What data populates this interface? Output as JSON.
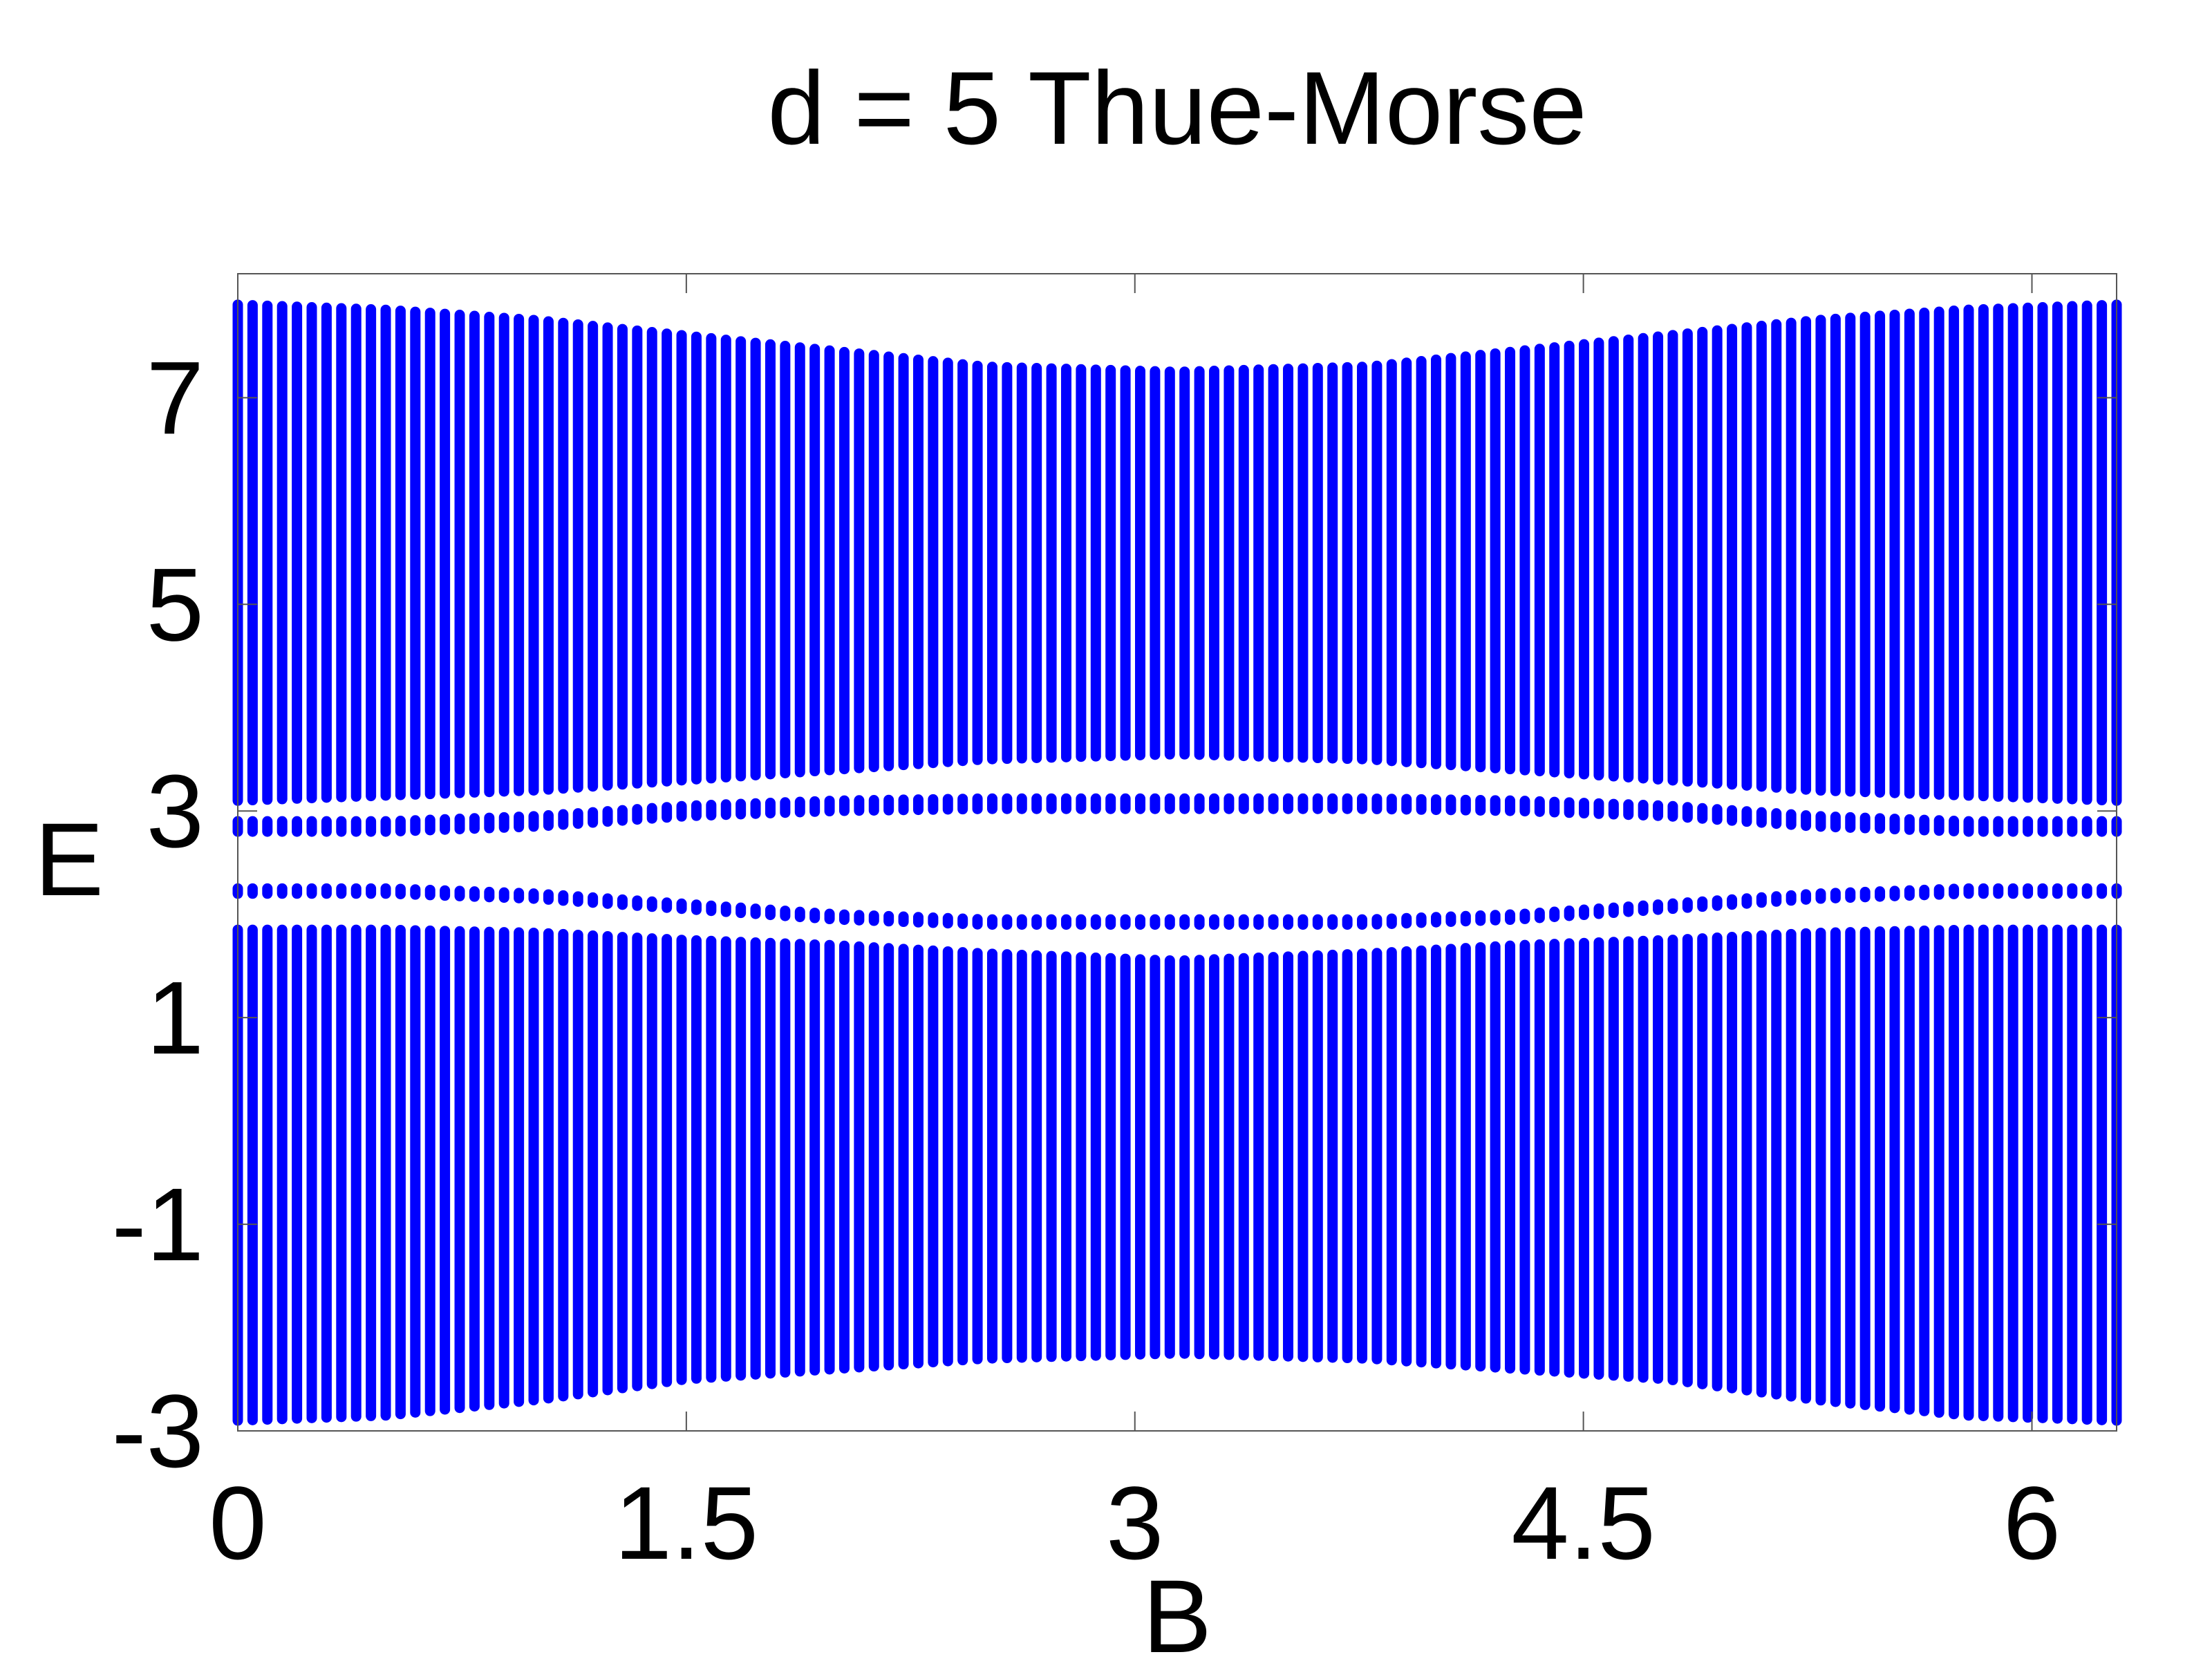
{
  "chart_data": {
    "type": "scatter",
    "title": "d = 5 Thue-Morse",
    "xlabel": "B",
    "ylabel": "E",
    "xlim": [
      0,
      6.2832
    ],
    "ylim": [
      -3,
      8.2
    ],
    "xticks": [
      0,
      1.5,
      3,
      4.5,
      6
    ],
    "xtick_labels": [
      "0",
      "1.5",
      "3",
      "4.5",
      "6"
    ],
    "yticks": [
      -3,
      -1,
      1,
      3,
      5,
      7
    ],
    "ytick_labels": [
      "-3",
      "-1",
      "1",
      "3",
      "5",
      "7"
    ],
    "grid": false,
    "box": true,
    "marker_color": "#0000ff",
    "sample_count": 128,
    "series": [
      {
        "values_description": "",
        "bands": [
          {
            "B": [
              0,
              0.5,
              1.0,
              1.5,
              2.0,
              2.5,
              3.1416,
              3.78,
              4.28,
              4.78,
              5.28,
              5.78,
              6.2832
            ],
            "E_min": [
              -2.9,
              -2.85,
              -2.7,
              -2.5,
              -2.4,
              -2.3,
              -2.25,
              -2.3,
              -2.4,
              -2.5,
              -2.7,
              -2.85,
              -2.9
            ],
            "E_max": [
              1.85,
              1.85,
              1.82,
              1.75,
              1.7,
              1.62,
              1.55,
              1.62,
              1.7,
              1.75,
              1.82,
              1.85,
              1.85
            ]
          },
          {
            "B": [
              0,
              0.5,
              1.0,
              1.5,
              2.0,
              2.5,
              3.1416,
              3.78,
              4.28,
              4.78,
              5.28,
              5.78,
              6.2832
            ],
            "E_min": [
              2.2,
              2.2,
              2.15,
              2.05,
              1.95,
              1.9,
              1.9,
              1.9,
              1.95,
              2.05,
              2.15,
              2.2,
              2.2
            ],
            "E_max": [
              2.25,
              2.25,
              2.2,
              2.1,
              2.0,
              1.95,
              1.95,
              1.95,
              2.0,
              2.1,
              2.2,
              2.25,
              2.25
            ]
          },
          {
            "B": [
              0,
              0.5,
              1.0,
              1.5,
              2.0,
              2.5,
              3.1416,
              3.78,
              4.28,
              4.78,
              5.28,
              5.78,
              6.2832
            ],
            "E_min": [
              2.8,
              2.8,
              2.85,
              2.95,
              3.0,
              3.02,
              3.02,
              3.02,
              3.0,
              2.95,
              2.85,
              2.8,
              2.8
            ],
            "E_max": [
              2.9,
              2.9,
              2.95,
              3.05,
              3.1,
              3.12,
              3.12,
              3.12,
              3.1,
              3.05,
              2.95,
              2.9,
              2.9
            ]
          },
          {
            "B": [
              0,
              0.5,
              1.0,
              1.5,
              2.0,
              2.5,
              3.1416,
              3.78,
              4.28,
              4.78,
              5.28,
              5.78,
              6.2832
            ],
            "E_min": [
              3.1,
              3.15,
              3.2,
              3.3,
              3.4,
              3.5,
              3.55,
              3.5,
              3.4,
              3.3,
              3.2,
              3.15,
              3.1
            ],
            "E_max": [
              7.9,
              7.85,
              7.75,
              7.6,
              7.45,
              7.3,
              7.25,
              7.3,
              7.45,
              7.6,
              7.75,
              7.85,
              7.9
            ]
          }
        ]
      }
    ]
  }
}
